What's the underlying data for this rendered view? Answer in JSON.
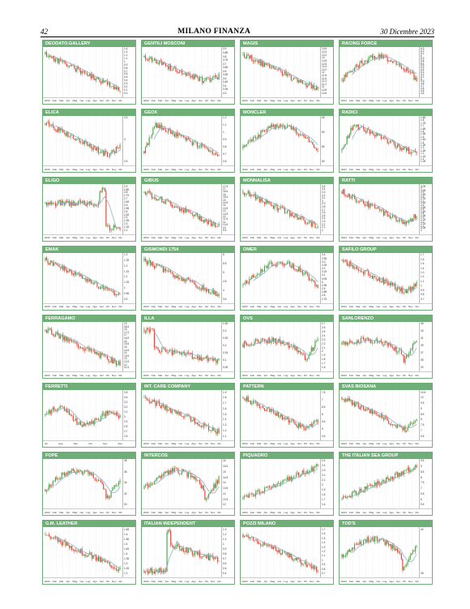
{
  "header": {
    "page_number": "42",
    "title": "MILANO FINANZA",
    "date": "30 Dicembre 2023"
  },
  "colors": {
    "up": "#4fa34f",
    "down": "#e2483a",
    "avg": "#8fb0c8",
    "panel": "#6fae76"
  },
  "chart_data": [
    {
      "type": "candlestick",
      "title": "DEODATO.GALLERY",
      "ylim": [
        0.0,
        1.4
      ],
      "trend": "down",
      "seed": 11,
      "yticks": [
        "1.4",
        "1.3",
        "1.2",
        "1.1",
        "1",
        "0.9",
        "0.8",
        "0.7",
        "0.6",
        "0.5",
        "0.4",
        "0.3",
        "0.2",
        "0.1",
        "0.0"
      ],
      "xticks": [
        "2023",
        "Feb",
        "Mar",
        "Apr",
        "Mag",
        "Giu",
        "Lug",
        "Ago",
        "Set",
        "Ott",
        "Nov",
        "Dic"
      ]
    },
    {
      "type": "candlestick",
      "title": "GENTILI MOSCONI",
      "ylim": [
        3.3,
        3.9
      ],
      "trend": "down-v",
      "seed": 12,
      "yticks": [
        "3.9",
        "3.85",
        "3.8",
        "3.75",
        "3.7",
        "3.65",
        "3.6",
        "3.55",
        "3.5",
        "3.45",
        "3.4",
        "3.35",
        "3.3"
      ],
      "xticks": [
        "2023",
        "Feb",
        "Mar",
        "Apr",
        "Mag",
        "Giu",
        "Lug",
        "Ago",
        "Set",
        "Ott",
        "Nov",
        "Dic"
      ]
    },
    {
      "type": "candlestick",
      "title": "MAGIS",
      "ylim": [
        10.6,
        13.6
      ],
      "trend": "down",
      "seed": 13,
      "yticks": [
        "13.6",
        "13.4",
        "13.2",
        "13",
        "12.8",
        "12.6",
        "12.4",
        "12.2",
        "12",
        "11.8",
        "11.6",
        "11.4",
        "11.2",
        "11",
        "10.8",
        "10.6"
      ],
      "xticks": [
        "2023",
        "Feb",
        "Mar",
        "Apr",
        "Mag",
        "Giu",
        "Lug",
        "Ago",
        "Set",
        "Ott",
        "Nov",
        "Dic"
      ]
    },
    {
      "type": "candlestick",
      "title": "RACING FORCE",
      "ylim": [
        4.4,
        6.3
      ],
      "trend": "hump",
      "seed": 14,
      "yticks": [
        "6.3",
        "6.2",
        "6.1",
        "6",
        "5.9",
        "5.8",
        "5.7",
        "5.6",
        "5.5",
        "5.4",
        "5.3",
        "5.2",
        "5.1",
        "5",
        "4.9",
        "4.8",
        "4.7",
        "4.6",
        "4.5",
        "4.4"
      ],
      "xticks": [
        "2023",
        "Feb",
        "Mar",
        "Apr",
        "Mag",
        "Giu",
        "Lug",
        "Ago",
        "Set",
        "Ott",
        "Nov",
        "Dic"
      ]
    },
    {
      "type": "candlestick",
      "title": "ELICA",
      "ylim": [
        2.0,
        3.7
      ],
      "trend": "down-end-up",
      "seed": 21,
      "yticks": [
        "3.5",
        "3",
        "2.5"
      ],
      "xticks": [
        "2023",
        "Feb",
        "Mar",
        "Apr",
        "Mag",
        "Giu",
        "Lug",
        "Ago",
        "Set",
        "Ott",
        "Nov",
        "Dic"
      ]
    },
    {
      "type": "candlestick",
      "title": "GEOX",
      "ylim": [
        0.6,
        1.2
      ],
      "trend": "up-then-down",
      "seed": 22,
      "yticks": [
        "1.2",
        "1.1",
        "1",
        "0.9",
        "0.8",
        "0.7",
        "0.6"
      ],
      "xticks": [
        "2023",
        "Feb",
        "Mar",
        "Apr",
        "Mag",
        "Giu",
        "Lug",
        "Ago",
        "Set",
        "Ott",
        "Nov",
        "Dic"
      ]
    },
    {
      "type": "candlestick",
      "title": "MONCLER",
      "ylim": [
        48,
        66
      ],
      "trend": "hump",
      "seed": 23,
      "yticks": [
        "65",
        "60",
        "55",
        "50"
      ],
      "xticks": [
        "2023",
        "Feb",
        "Mar",
        "Apr",
        "Mag",
        "Giu",
        "Lug",
        "Ago",
        "Set",
        "Ott",
        "Nov",
        "Dic"
      ]
    },
    {
      "type": "candlestick",
      "title": "RADICI",
      "ylim": [
        1.05,
        1.85
      ],
      "trend": "up-then-down",
      "seed": 24,
      "yticks": [
        "1.85",
        "1.8",
        "1.75",
        "1.7",
        "1.65",
        "1.6",
        "1.55",
        "1.5",
        "1.45",
        "1.4",
        "1.35",
        "1.3",
        "1.25",
        "1.2",
        "1.15",
        "1.1",
        "1.05"
      ],
      "xticks": [
        "2023",
        "Feb",
        "Mar",
        "Apr",
        "Mag",
        "Giu",
        "Lug",
        "Ago",
        "Set",
        "Ott",
        "Nov",
        "Dic"
      ]
    },
    {
      "type": "candlestick",
      "title": "ELIGO",
      "ylim": [
        2.2,
        2.9
      ],
      "trend": "flat-drop",
      "seed": 31,
      "yticks": [
        "2.9",
        "2.85",
        "2.8",
        "2.75",
        "2.7",
        "2.65",
        "2.6",
        "2.55",
        "2.5",
        "2.45",
        "2.4",
        "2.35",
        "2.3",
        "2.25",
        "2.2"
      ],
      "xticks": [
        "2023",
        "Feb",
        "Mar",
        "Apr",
        "Mag",
        "Giu",
        "Lug",
        "Ago",
        "Set",
        "Ott",
        "Nov",
        "Dic"
      ]
    },
    {
      "type": "candlestick",
      "title": "GIBUS",
      "ylim": [
        9.5,
        17.5
      ],
      "trend": "down",
      "seed": 32,
      "yticks": [
        "17.5",
        "17",
        "16.5",
        "16",
        "15.5",
        "15",
        "14.5",
        "14",
        "13.5",
        "13",
        "12.5",
        "12",
        "11.5",
        "11",
        "10.5",
        "10",
        "9.5"
      ],
      "xticks": [
        "2023",
        "Feb",
        "Mar",
        "Apr",
        "Mag",
        "Giu",
        "Lug",
        "Ago",
        "Set",
        "Ott",
        "Nov",
        "Dic"
      ]
    },
    {
      "type": "candlestick",
      "title": "MONNALISA",
      "ylim": [
        2.0,
        3.5
      ],
      "trend": "down",
      "seed": 33,
      "yticks": [
        "3.5",
        "3.4",
        "3.3",
        "3.2",
        "3.1",
        "3",
        "2.9",
        "2.8",
        "2.7",
        "2.6",
        "2.5",
        "2.4",
        "2.3",
        "2.2",
        "2.1",
        "2"
      ],
      "xticks": [
        "2023",
        "Feb",
        "Mar",
        "Apr",
        "Mag",
        "Giu",
        "Lug",
        "Ago",
        "Set",
        "Ott",
        "Nov",
        "Dic"
      ]
    },
    {
      "type": "candlestick",
      "title": "RATTI",
      "ylim": [
        2.0,
        3.05
      ],
      "trend": "down-end-up",
      "seed": 34,
      "yticks": [
        "3.05",
        "3",
        "2.95",
        "2.9",
        "2.85",
        "2.8",
        "2.75",
        "2.7",
        "2.65",
        "2.6",
        "2.55",
        "2.5",
        "2.45",
        "2.4",
        "2.35",
        "2.3",
        "2.25",
        "2.2",
        "2.15",
        "2.1",
        "2.05",
        "2"
      ],
      "xticks": [
        "2023",
        "Feb",
        "Mar",
        "Apr",
        "Mag",
        "Giu",
        "Lug",
        "Ago",
        "Set",
        "Ott",
        "Nov",
        "Dic"
      ]
    },
    {
      "type": "candlestick",
      "title": "EMAK",
      "ylim": [
        0.9,
        1.3
      ],
      "trend": "down",
      "seed": 41,
      "yticks": [
        "1.3",
        "1.25",
        "1.2",
        "1.15",
        "1.1",
        "1.05",
        "1",
        "0.95",
        "0.9"
      ],
      "xticks": [
        "2023",
        "Feb",
        "Mar",
        "Apr",
        "Mag",
        "Giu",
        "Lug",
        "Ago",
        "Set",
        "Ott",
        "Nov",
        "Dic"
      ]
    },
    {
      "type": "candlestick",
      "title": "GISMONDI 1754",
      "ylim": [
        3.5,
        6.0
      ],
      "trend": "down",
      "seed": 42,
      "yticks": [
        "6",
        "5.5",
        "5",
        "4.5",
        "4",
        "3.5"
      ],
      "xticks": [
        "2023",
        "Feb",
        "Mar",
        "Apr",
        "Mag",
        "Giu",
        "Lug",
        "Ago",
        "Set",
        "Ott",
        "Nov",
        "Dic"
      ]
    },
    {
      "type": "candlestick",
      "title": "OMER",
      "ylim": [
        2.75,
        3.4
      ],
      "trend": "hump",
      "seed": 43,
      "yticks": [
        "3.4",
        "3.35",
        "3.3",
        "3.25",
        "3.2",
        "3.15",
        "3.1",
        "3.05",
        "3",
        "2.95",
        "2.9",
        "2.85",
        "2.8",
        "2.75"
      ],
      "xticks": [
        "2023",
        "Feb",
        "Mar",
        "Apr",
        "Mag",
        "Giu",
        "Lug",
        "Ago",
        "Set",
        "Ott",
        "Nov",
        "Dic"
      ]
    },
    {
      "type": "candlestick",
      "title": "SAFILO GROUP",
      "ylim": [
        0.7,
        1.7
      ],
      "trend": "down-end-up",
      "seed": 44,
      "yticks": [
        "1.7",
        "1.6",
        "1.5",
        "1.4",
        "1.3",
        "1.2",
        "1.1",
        "1",
        "0.9",
        "0.8",
        "0.7"
      ],
      "xticks": [
        "2023",
        "Feb",
        "Mar",
        "Apr",
        "Mag",
        "Giu",
        "Lug",
        "Ago",
        "Set",
        "Ott",
        "Nov",
        "Dic"
      ]
    },
    {
      "type": "candlestick",
      "title": "FERRAGAMO",
      "ylim": [
        11.5,
        19.0
      ],
      "trend": "down",
      "seed": 51,
      "yticks": [
        "19",
        "18.5",
        "18",
        "17.5",
        "17",
        "16.5",
        "16",
        "15.5",
        "15",
        "14.5",
        "14",
        "13.5",
        "13",
        "12.5",
        "12",
        "11.5"
      ],
      "xticks": [
        "2023",
        "Feb",
        "Mar",
        "Apr",
        "Mag",
        "Giu",
        "Lug",
        "Ago",
        "Set",
        "Ott",
        "Nov",
        "Dic"
      ]
    },
    {
      "type": "candlestick",
      "title": "ILLA",
      "ylim": [
        0.05,
        0.35
      ],
      "trend": "drop-flat",
      "seed": 52,
      "yticks": [
        "0.35",
        "0.3",
        "0.25",
        "0.2",
        "0.15",
        "0.1",
        "0.05"
      ],
      "xticks": [
        "2023",
        "Feb",
        "Mar",
        "Apr",
        "Mag",
        "Giu",
        "Lug",
        "Ago",
        "Set",
        "Ott",
        "Nov",
        "Dic"
      ]
    },
    {
      "type": "candlestick",
      "title": "OVS",
      "ylim": [
        1.6,
        2.7
      ],
      "trend": "hump-end-up",
      "seed": 53,
      "yticks": [
        "2.7",
        "2.6",
        "2.5",
        "2.4",
        "2.3",
        "2.2",
        "2.1",
        "2",
        "1.9",
        "1.8",
        "1.7",
        "1.6"
      ],
      "xticks": [
        "2023",
        "Feb",
        "Mar",
        "Apr",
        "Mag",
        "Giu",
        "Lug",
        "Ago",
        "Set",
        "Ott",
        "Nov",
        "Dic"
      ]
    },
    {
      "type": "candlestick",
      "title": "SANLORENZO",
      "ylim": [
        32,
        45
      ],
      "trend": "hump-end-up",
      "seed": 54,
      "yticks": [
        "45",
        "43",
        "41",
        "39",
        "37",
        "35",
        "33"
      ],
      "xticks": [
        "2023",
        "Feb",
        "Mar",
        "Apr",
        "Mag",
        "Giu",
        "Lug",
        "Ago",
        "Set",
        "Ott",
        "Nov",
        "Dic"
      ]
    },
    {
      "type": "candlestick",
      "title": "FERRETTI",
      "ylim": [
        2.6,
        3.5
      ],
      "trend": "choppy",
      "seed": 61,
      "yticks": [
        "3.5",
        "3.4",
        "3.3",
        "3.2",
        "3.1",
        "3",
        "2.9",
        "2.8",
        "2.7",
        "2.6"
      ],
      "xticks": [
        "Jul",
        "Aug",
        "Sep",
        "Oct",
        "Nov",
        "Dec"
      ]
    },
    {
      "type": "candlestick",
      "title": "INT. CARE COMPANY",
      "ylim": [
        1.1,
        2.0
      ],
      "trend": "down",
      "seed": 62,
      "yticks": [
        "1.9",
        "1.8",
        "1.7",
        "1.6",
        "1.5",
        "1.4",
        "1.3",
        "1.2",
        "1.1"
      ],
      "xticks": [
        "2023",
        "Feb",
        "Mar",
        "Apr",
        "Mag",
        "Giu",
        "Lug",
        "Ago",
        "Set",
        "Ott",
        "Nov",
        "Dic"
      ]
    },
    {
      "type": "candlestick",
      "title": "PATTERN",
      "ylim": [
        4.5,
        7.6
      ],
      "trend": "down-end-up",
      "seed": 63,
      "yticks": [
        "7.5",
        "7",
        "6.5",
        "6",
        "5.5",
        "5",
        "4.5"
      ],
      "xticks": [
        "2023",
        "Feb",
        "Mar",
        "Apr",
        "Mag",
        "Giu",
        "Lug",
        "Ago",
        "Set",
        "Ott",
        "Nov",
        "Dic"
      ]
    },
    {
      "type": "candlestick",
      "title": "SVAS BIOSANA",
      "ylim": [
        6.5,
        10.8
      ],
      "trend": "down-end-up",
      "seed": 64,
      "yticks": [
        "10.5",
        "10",
        "9.5",
        "9",
        "8.5",
        "8",
        "7.5",
        "7",
        "6.5"
      ],
      "xticks": [
        "2023",
        "Feb",
        "Mar",
        "Apr",
        "Mag",
        "Giu",
        "Lug",
        "Ago",
        "Set",
        "Ott",
        "Nov",
        "Dic"
      ]
    },
    {
      "type": "candlestick",
      "title": "FOPE",
      "ylim": [
        30,
        38
      ],
      "trend": "hump-dip-up",
      "seed": 71,
      "yticks": [
        "38",
        "36",
        "34",
        "32",
        "30"
      ],
      "xticks": [
        "2023",
        "Feb",
        "Mar",
        "Apr",
        "Mag",
        "Giu",
        "Lug",
        "Ago",
        "Set",
        "Ott",
        "Nov",
        "Dic"
      ]
    },
    {
      "type": "candlestick",
      "title": "INTERCOS",
      "ylim": [
        12,
        16
      ],
      "trend": "hump-dip-up",
      "seed": 72,
      "yticks": [
        "16",
        "15.5",
        "15",
        "14.5",
        "14",
        "13.5",
        "13",
        "12.5",
        "12"
      ],
      "xticks": [
        "2023",
        "Feb",
        "Mar",
        "Apr",
        "Mag",
        "Giu",
        "Lug",
        "Ago",
        "Set",
        "Ott",
        "Nov",
        "Dic"
      ]
    },
    {
      "type": "candlestick",
      "title": "PIQUADRO",
      "ylim": [
        1.6,
        2.5
      ],
      "trend": "up",
      "seed": 73,
      "yticks": [
        "2.5",
        "2.4",
        "2.3",
        "2.2",
        "2.1",
        "2",
        "1.9",
        "1.8",
        "1.7",
        "1.6"
      ],
      "xticks": [
        "2023",
        "Feb",
        "Mar",
        "Apr",
        "Mag",
        "Giu",
        "Lug",
        "Ago",
        "Set",
        "Ott",
        "Nov",
        "Dic"
      ]
    },
    {
      "type": "candlestick",
      "title": "THE ITALIAN SEA GROUP",
      "ylim": [
        5.5,
        9.5
      ],
      "trend": "up",
      "seed": 74,
      "yticks": [
        "9.5",
        "9",
        "8.5",
        "8",
        "7.5",
        "7",
        "6.5",
        "6",
        "5.5"
      ],
      "xticks": [
        "2023",
        "Feb",
        "Mar",
        "Apr",
        "Mag",
        "Giu",
        "Lug",
        "Ago",
        "Set",
        "Ott",
        "Nov",
        "Dic"
      ]
    },
    {
      "type": "candlestick",
      "title": "G.M. LEATHER",
      "ylim": [
        1.2,
        1.65
      ],
      "trend": "down",
      "seed": 81,
      "yticks": [
        "1.65",
        "1.6",
        "1.55",
        "1.5",
        "1.45",
        "1.4",
        "1.35",
        "1.3",
        "1.25",
        "1.2"
      ],
      "xticks": [
        "2023",
        "Feb",
        "Mar",
        "Apr",
        "Mag",
        "Giu",
        "Lug",
        "Ago",
        "Set",
        "Ott",
        "Nov",
        "Dic"
      ]
    },
    {
      "type": "candlestick",
      "title": "ITALIAN INDEPENDENT",
      "ylim": [
        0.4,
        1.3
      ],
      "trend": "spike-down",
      "seed": 82,
      "yticks": [
        "1.3",
        "1.2",
        "1.1",
        "1",
        "0.9",
        "0.8",
        "0.7",
        "0.6",
        "0.5",
        "0.4"
      ],
      "xticks": [
        "2023",
        "Feb",
        "Mar",
        "Apr",
        "Mag",
        "Giu",
        "Lug",
        "Ago",
        "Set",
        "Ott",
        "Nov",
        "Dic"
      ]
    },
    {
      "type": "candlestick",
      "title": "POZZI MILANO",
      "ylim": [
        0.7,
        1.7
      ],
      "trend": "down",
      "seed": 83,
      "yticks": [
        "1.7",
        "1.6",
        "1.5",
        "1.4",
        "1.3",
        "1.2",
        "1.1",
        "1",
        "0.9",
        "0.8",
        "0.7"
      ],
      "xticks": [
        "2023",
        "Feb",
        "Mar",
        "Apr",
        "Mag",
        "Giu",
        "Lug",
        "Ago",
        "Set",
        "Ott",
        "Nov",
        "Dic"
      ]
    },
    {
      "type": "candlestick",
      "title": "TOD'S",
      "ylim": [
        32,
        44
      ],
      "trend": "hump-dip-up",
      "seed": 84,
      "yticks": [
        "40",
        "35"
      ],
      "xticks": [
        "2023",
        "Feb",
        "Mar",
        "Apr",
        "Mag",
        "Giu",
        "Lug",
        "Ago",
        "Set",
        "Ott",
        "Nov",
        "Dic"
      ]
    }
  ]
}
